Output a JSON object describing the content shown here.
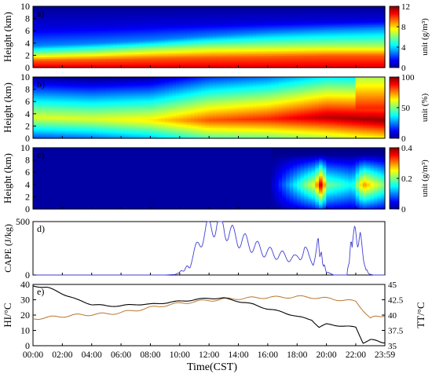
{
  "xlabel": "Time(CST)",
  "xticks": [
    "00:00",
    "02:00",
    "04:00",
    "06:00",
    "08:00",
    "10:00",
    "12:00",
    "14:00",
    "16:00",
    "18:00",
    "20:00",
    "22:00",
    "23:59"
  ],
  "colors": {
    "jet_low": "#00008f",
    "jet_high": "#800000",
    "cape": "#3f3fd6",
    "hi": "#000000",
    "tt": "#b8762e"
  },
  "chart_data": [
    {
      "type": "heatmap",
      "panel_label": "a)",
      "ylabel": "Height (km)",
      "ylim": [
        0,
        10
      ],
      "yticks": [
        "0",
        "2",
        "4",
        "6",
        "8",
        "10"
      ],
      "colorbar": {
        "ticks": [
          "0",
          "4",
          "8",
          "12"
        ],
        "label": "unit (g/m³)",
        "range": [
          0,
          12
        ]
      },
      "description_values": {
        "x_hours": [
          0,
          4,
          8,
          12,
          16,
          20,
          23.98
        ],
        "layer_tops_km": {
          "value_10_12": [
            1.2,
            1.3,
            1.5,
            1.7,
            1.8,
            2.0,
            2.0
          ],
          "value_6_8": [
            2.2,
            2.5,
            3.0,
            3.4,
            3.5,
            3.6,
            3.6
          ],
          "value_2_4": [
            3.6,
            4.0,
            4.5,
            5.2,
            5.8,
            6.2,
            6.5
          ],
          "value_0_2": [
            6.5,
            6.7,
            7.0,
            7.2,
            7.4,
            7.6,
            7.8
          ]
        }
      }
    },
    {
      "type": "heatmap",
      "panel_label": "b)",
      "ylabel": "Height (km)",
      "ylim": [
        0,
        10
      ],
      "yticks": [
        "0",
        "2",
        "4",
        "6",
        "8",
        "10"
      ],
      "colorbar": {
        "ticks": [
          "0",
          "50",
          "100"
        ],
        "label": "unit (%)",
        "range": [
          0,
          100
        ]
      },
      "description_values": {
        "x_hours": [
          0,
          4,
          8,
          12,
          16,
          20,
          23.98
        ],
        "rh_max_height_km": [
          3.5,
          3.2,
          3.0,
          3.0,
          3.2,
          3.5,
          3.0
        ],
        "rh_peak_percent": [
          60,
          60,
          65,
          80,
          85,
          95,
          98
        ]
      }
    },
    {
      "type": "heatmap",
      "panel_label": "c)",
      "ylabel": "Height (km)",
      "ylim": [
        0,
        10
      ],
      "yticks": [
        "0",
        "2",
        "4",
        "6",
        "8",
        "10"
      ],
      "colorbar": {
        "ticks": [
          "0",
          "0.2",
          "0.4"
        ],
        "label": "unit (g/m³)",
        "range": [
          0,
          0.4
        ]
      },
      "description_values": {
        "x_hours": [
          0,
          4,
          8,
          12,
          16,
          19.2,
          19.7,
          20.0,
          21.8,
          22.5,
          23.98
        ],
        "max_value": [
          0,
          0,
          0,
          0,
          0,
          0.25,
          0.4,
          0.2,
          0.15,
          0.3,
          0.2
        ]
      }
    },
    {
      "type": "line",
      "panel_label": "d)",
      "ylabel": "CAPE (J/kg)",
      "ylim": [
        0,
        500
      ],
      "yticks": [
        "0",
        "500"
      ],
      "series": [
        {
          "x": [
            0,
            9,
            9.7,
            10.2,
            10.7,
            11,
            11.3,
            11.6,
            11.9,
            12.2,
            12.5,
            12.8,
            13.1,
            13.4,
            13.7,
            14,
            14.3,
            14.6,
            14.9,
            15.2,
            15.5,
            15.8,
            16.1,
            16.4,
            16.7,
            17,
            17.3,
            17.6,
            17.9,
            18.2,
            18.5,
            18.8,
            19.1,
            19.4,
            19.6,
            19.8,
            20,
            20.5,
            21,
            21.4,
            21.6,
            21.8,
            22.3,
            22.7,
            22.9,
            23.2,
            23.98
          ],
          "y": [
            0,
            0,
            5,
            40,
            90,
            200,
            300,
            380,
            420,
            460,
            490,
            480,
            440,
            400,
            360,
            340,
            320,
            300,
            280,
            260,
            240,
            220,
            210,
            200,
            190,
            180,
            170,
            160,
            150,
            180,
            250,
            160,
            120,
            300,
            200,
            100,
            30,
            0,
            0,
            0,
            200,
            380,
            330,
            50,
            10,
            0,
            0
          ]
        }
      ]
    },
    {
      "type": "line",
      "panel_label": "e)",
      "ylabel": "HI/°C",
      "ylabel_right": "TT/°C",
      "ylim": [
        0,
        40
      ],
      "ylim_right": [
        35,
        45
      ],
      "yticks": [
        "0",
        "10",
        "20",
        "30",
        "40"
      ],
      "yticks_right": [
        "35",
        "37.5",
        "40",
        "42.5",
        "45"
      ],
      "series": [
        {
          "name": "HI",
          "axis": "left",
          "x": [
            0,
            1,
            2,
            3,
            4,
            5,
            6,
            7,
            8,
            9,
            10,
            11,
            12,
            13,
            14,
            15,
            16,
            17,
            18,
            19,
            19.5,
            20,
            21,
            22,
            22.5,
            23,
            23.98
          ],
          "y": [
            39,
            38,
            34,
            30,
            27,
            26,
            26,
            27,
            27,
            28,
            29,
            30,
            31,
            31,
            29,
            27,
            24,
            22,
            19,
            17,
            12,
            14,
            13,
            12,
            2,
            4,
            2
          ]
        },
        {
          "name": "TT",
          "axis": "right",
          "x": [
            0,
            1,
            2,
            3,
            4,
            5,
            6,
            7,
            8,
            9,
            10,
            11,
            12,
            13,
            14,
            15,
            16,
            17,
            18,
            19,
            20,
            21,
            22,
            23,
            23.98
          ],
          "y": [
            39.4,
            39.6,
            39.8,
            40,
            40.1,
            40.2,
            40.4,
            40.8,
            41.2,
            41.6,
            41.9,
            42.2,
            42.4,
            42.6,
            42.7,
            42.8,
            42.9,
            42.9,
            43,
            42.9,
            42.7,
            42.5,
            42.2,
            39.5,
            40
          ]
        }
      ]
    }
  ]
}
